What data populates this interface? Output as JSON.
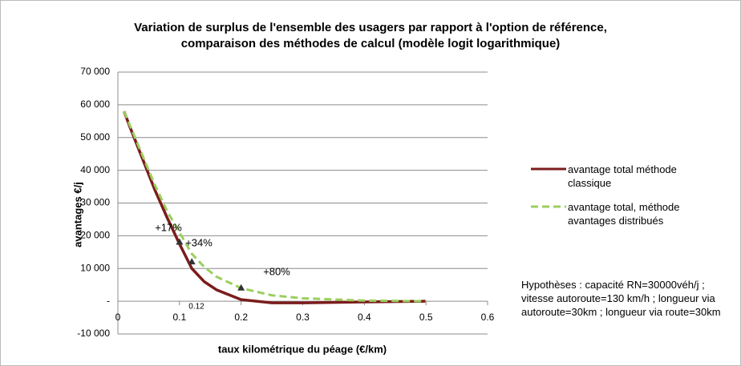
{
  "chart_data": {
    "type": "line",
    "title": [
      "Variation de surplus de l'ensemble des usagers par rapport à l'option de référence,",
      "comparaison des méthodes de calcul (modèle logit logarithmique)"
    ],
    "y_label": "avantages €/j",
    "x_label": "taux kilométrique du péage (€/km)",
    "x": [
      0.01,
      0.02,
      0.04,
      0.06,
      0.08,
      0.1,
      0.12,
      0.14,
      0.16,
      0.2,
      0.25,
      0.3,
      0.4,
      0.5
    ],
    "series": [
      {
        "name": "avantage total méthode classique",
        "color": "#7b1c1c",
        "dash": false,
        "values": [
          58000,
          53000,
          43500,
          34000,
          25500,
          17500,
          10000,
          6000,
          3500,
          500,
          -500,
          -500,
          -200,
          0
        ]
      },
      {
        "name": "avantage total, méthode avantages distribués",
        "color": "#9bcf5e",
        "dash": true,
        "values": [
          58000,
          53500,
          44500,
          35500,
          27500,
          21000,
          14500,
          10500,
          7500,
          4000,
          1800,
          900,
          200,
          0
        ]
      }
    ],
    "markers": {
      "x": [
        0.1,
        0.12,
        0.2
      ],
      "y": [
        18000,
        12000,
        4000
      ]
    },
    "annotations": [
      "+17%",
      "+34%",
      "+80%",
      "0.12"
    ],
    "hypotheses": "Hypothèses : capacité RN=30000véh/j ; vitesse autoroute=130 km/h ; longueur via autoroute=30km ; longueur via route=30km",
    "xlim": [
      0,
      0.6
    ],
    "xticks": [
      0,
      0.1,
      0.2,
      0.3,
      0.4,
      0.5,
      0.6
    ],
    "ylim": [
      -10000,
      70000
    ],
    "yticks": [
      {
        "value": -10000,
        "label": "-10 000"
      },
      {
        "value": 0,
        "label": "-"
      },
      {
        "value": 10000,
        "label": "10 000"
      },
      {
        "value": 20000,
        "label": "20 000"
      },
      {
        "value": 30000,
        "label": "30 000"
      },
      {
        "value": 40000,
        "label": "40 000"
      },
      {
        "value": 50000,
        "label": "50 000"
      },
      {
        "value": 60000,
        "label": "60 000"
      },
      {
        "value": 70000,
        "label": "70 000"
      }
    ],
    "grid": true
  }
}
